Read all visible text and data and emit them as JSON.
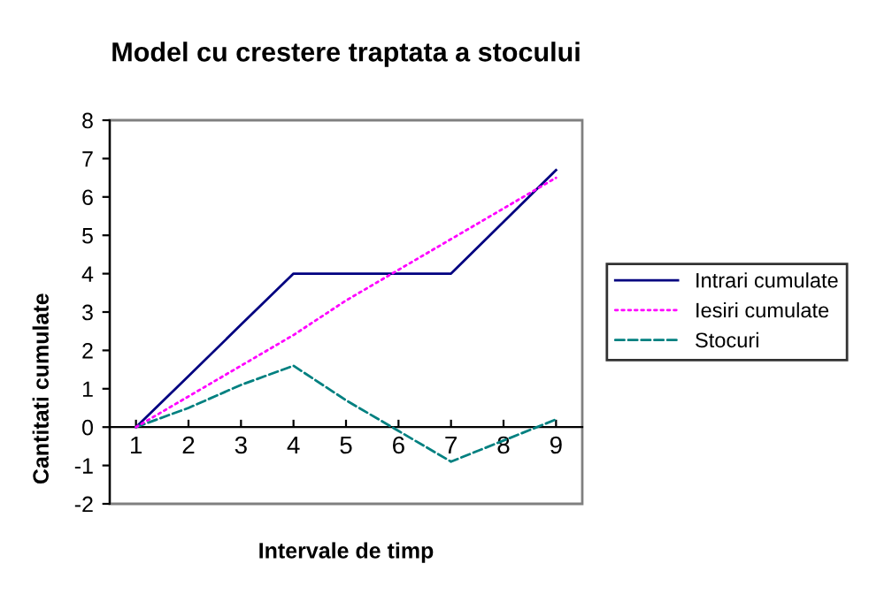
{
  "chart_data": {
    "type": "line",
    "title": "Model cu crestere traptata a stocului",
    "xlabel": "Intervale de timp",
    "ylabel": "Cantitati cumulate",
    "categories": [
      "1",
      "2",
      "3",
      "4",
      "5",
      "6",
      "7",
      "8",
      "9"
    ],
    "series": [
      {
        "name": "Intrari cumulate",
        "color": "#000080",
        "line_style": "solid",
        "values": [
          0,
          1.33,
          2.67,
          4,
          4,
          4,
          4,
          5.35,
          6.7
        ]
      },
      {
        "name": "Iesiri cumulate",
        "color": "#ff00ff",
        "line_style": "dotted",
        "values": [
          0,
          0.8,
          1.6,
          2.4,
          3.3,
          4.1,
          4.9,
          5.7,
          6.5
        ]
      },
      {
        "name": "Stocuri",
        "color": "#008080",
        "line_style": "dashed",
        "values": [
          0,
          0.5,
          1.1,
          1.6,
          0.7,
          -0.1,
          -0.9,
          -0.35,
          0.2
        ]
      }
    ],
    "ylim": [
      -2,
      8
    ],
    "yticks": [
      -2,
      -1,
      0,
      1,
      2,
      3,
      4,
      5,
      6,
      7,
      8
    ],
    "grid": false,
    "legend": "right",
    "marker": "none"
  }
}
